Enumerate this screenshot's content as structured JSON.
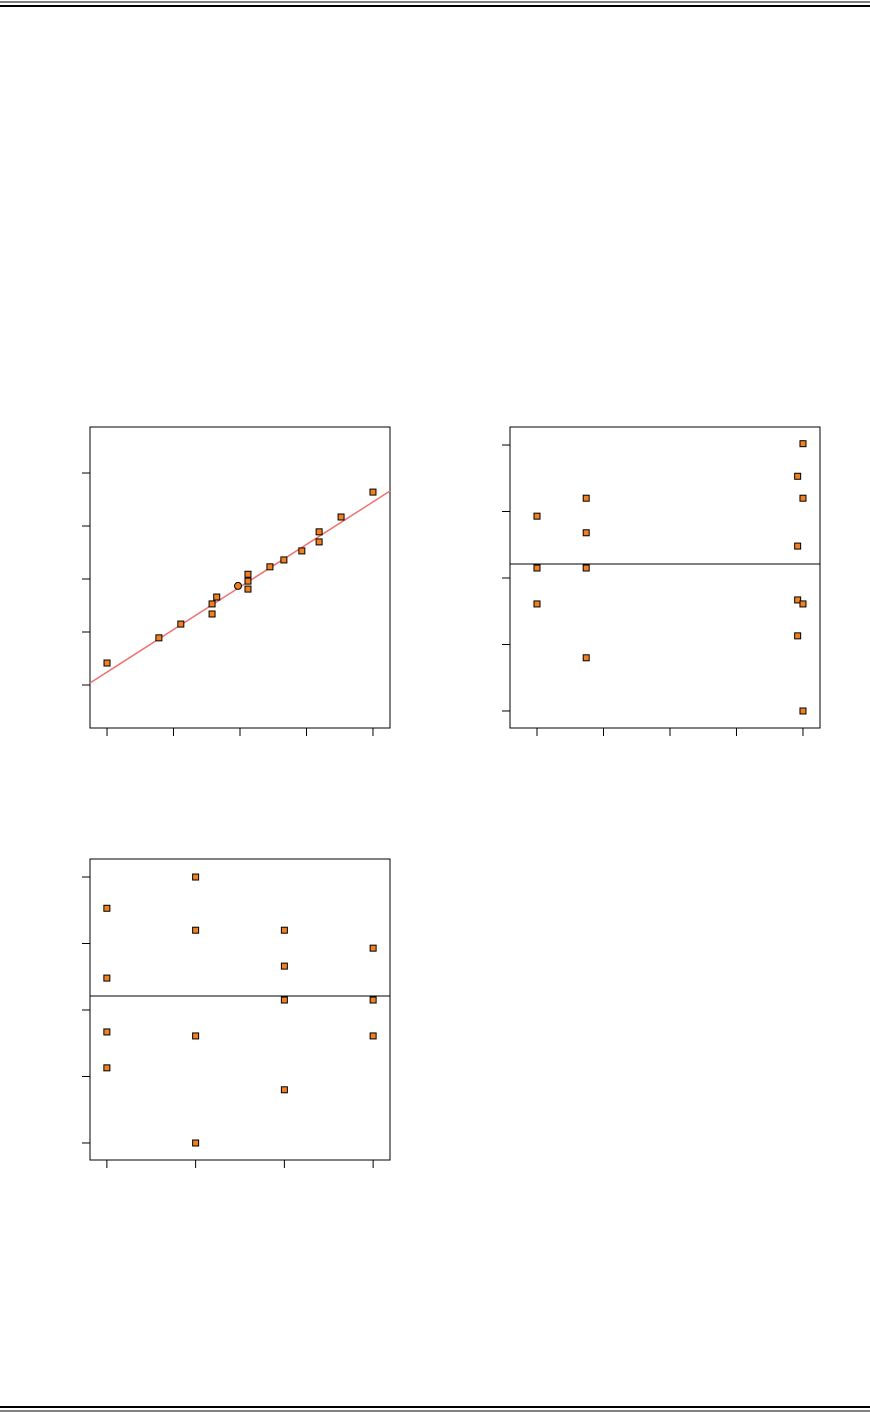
{
  "chart_data": [
    {
      "type": "scatter",
      "xlim": [
        0.744,
        5.256
      ],
      "ylim": [
        -2.811,
        2.868
      ],
      "xticks": [
        1,
        2,
        3,
        4,
        5
      ],
      "yticks": [
        -2,
        -1,
        0,
        1,
        2
      ],
      "series": [
        {
          "color": "#f08020",
          "marker": "square",
          "x": [
            1.0,
            1.78,
            2.11,
            2.58,
            2.58,
            2.65,
            3.12,
            3.12,
            3.12,
            3.45,
            3.66,
            3.93,
            4.19,
            4.19,
            4.52,
            5.0
          ],
          "values": [
            -1.585,
            -1.11,
            -0.85,
            -0.66,
            -0.47,
            -0.34,
            -0.19,
            -0.04,
            0.09,
            0.23,
            0.36,
            0.53,
            0.7,
            0.89,
            1.17,
            1.64
          ]
        },
        {
          "color": "#f08020",
          "marker": "circle",
          "x": [
            2.97
          ],
          "values": [
            -0.13
          ]
        }
      ],
      "fit": {
        "color": "#f07070",
        "x": [
          0.744,
          5.256
        ],
        "values": [
          -1.962,
          1.66
        ]
      }
    },
    {
      "type": "scatter",
      "xlim": [
        0.594,
        5.256
      ],
      "ylim": [
        -2.256,
        2.271
      ],
      "xticks": [
        1,
        2,
        3,
        4,
        5
      ],
      "yticks": [
        -2,
        -1,
        0,
        1,
        2
      ],
      "hline": 0.21,
      "series": [
        {
          "color": "#f08020",
          "marker": "square",
          "x": [
            1.0,
            1.0,
            1.0,
            1.74,
            1.74,
            1.74,
            1.74,
            5.0,
            4.92,
            5.0,
            4.92,
            4.92,
            5.0,
            4.92,
            5.0
          ],
          "values": [
            0.93,
            0.15,
            -0.39,
            1.2,
            0.68,
            0.15,
            -1.2,
            2.02,
            1.53,
            1.2,
            0.48,
            -0.33,
            -0.39,
            -0.87,
            -2.0
          ]
        }
      ]
    },
    {
      "type": "scatter",
      "xlim": [
        0.81,
        4.19
      ],
      "ylim": [
        -2.256,
        2.271
      ],
      "xticks": [
        1,
        2,
        3,
        4
      ],
      "yticks": [
        -2,
        -1,
        0,
        1,
        2
      ],
      "hline": 0.21,
      "series": [
        {
          "color": "#f08020",
          "marker": "square",
          "x": [
            1,
            1,
            1,
            1,
            2,
            2,
            2,
            2,
            3,
            3,
            3,
            3,
            4,
            4,
            4
          ],
          "values": [
            1.53,
            0.48,
            -0.33,
            -0.87,
            2.0,
            1.2,
            -0.39,
            -2.0,
            1.2,
            0.66,
            0.15,
            -1.2,
            0.93,
            0.15,
            -0.39
          ]
        }
      ]
    }
  ]
}
